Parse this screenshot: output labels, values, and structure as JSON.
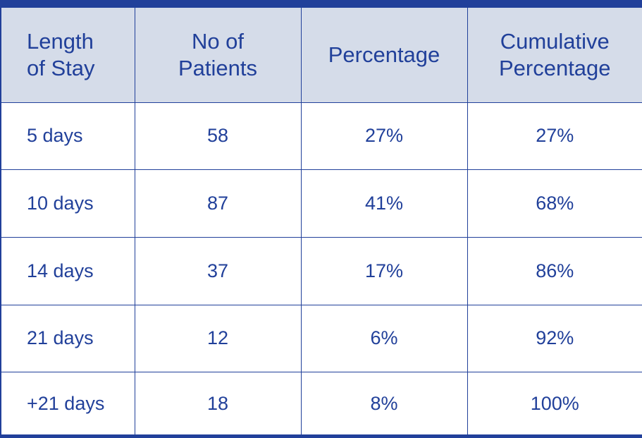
{
  "chart_data": {
    "type": "table",
    "columns": [
      [
        "Length",
        "of Stay"
      ],
      [
        "No of",
        "Patients"
      ],
      [
        "Percentage"
      ],
      [
        "Cumulative",
        "Percentage"
      ]
    ],
    "rows": [
      [
        "5 days",
        "58",
        "27%",
        "27%"
      ],
      [
        "10 days",
        "87",
        "41%",
        "68%"
      ],
      [
        "14 days",
        "37",
        "17%",
        "86%"
      ],
      [
        "21 days",
        "12",
        "6%",
        "92%"
      ],
      [
        "+21 days",
        "18",
        "8%",
        "100%"
      ]
    ]
  },
  "colors": {
    "text": "#21409a",
    "header_bg": "#d5dce9",
    "border": "#21409a"
  }
}
